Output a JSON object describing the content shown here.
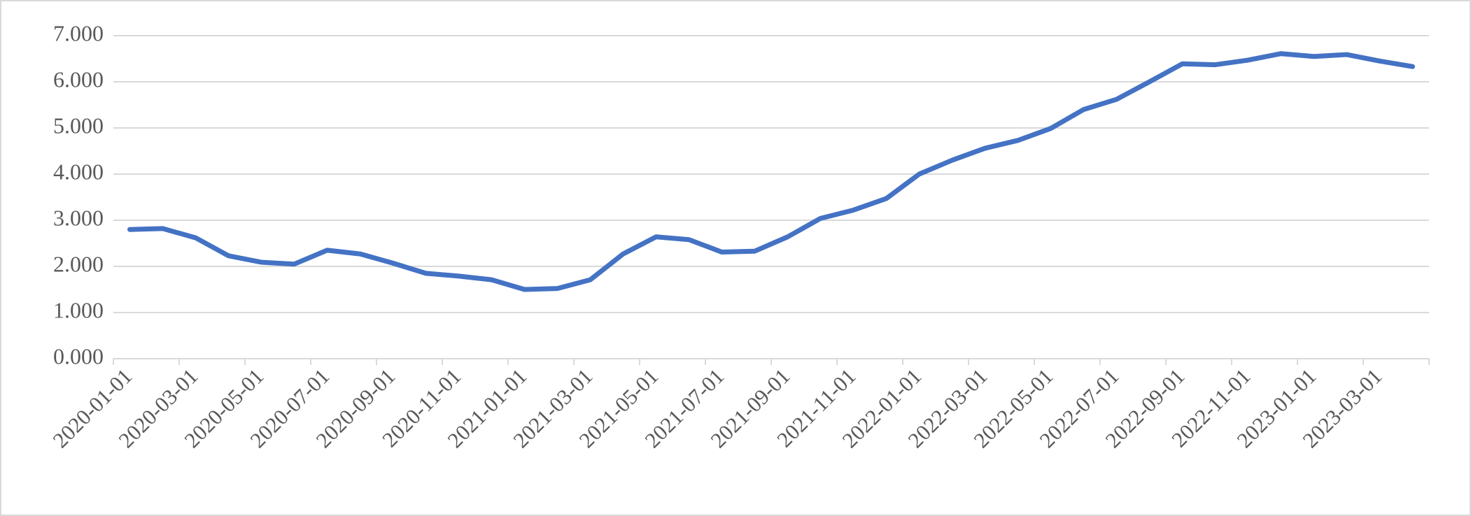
{
  "chart_data": {
    "type": "line",
    "categories": [
      "2020-01-01",
      null,
      "2020-03-01",
      null,
      "2020-05-01",
      null,
      "2020-07-01",
      null,
      "2020-09-01",
      null,
      "2020-11-01",
      null,
      "2021-01-01",
      null,
      "2021-03-01",
      null,
      "2021-05-01",
      null,
      "2021-07-01",
      null,
      "2021-09-01",
      null,
      "2021-11-01",
      null,
      "2022-01-01",
      null,
      "2022-03-01",
      null,
      "2022-05-01",
      null,
      "2022-07-01",
      null,
      "2022-09-01",
      null,
      "2022-11-01",
      null,
      "2023-01-01",
      null,
      "2023-03-01",
      null
    ],
    "values": [
      2.8,
      2.82,
      2.62,
      2.23,
      2.09,
      2.05,
      2.35,
      2.27,
      2.07,
      1.85,
      1.79,
      1.71,
      1.5,
      1.52,
      1.71,
      2.27,
      2.64,
      2.58,
      2.31,
      2.33,
      2.64,
      3.04,
      3.22,
      3.47,
      4.0,
      4.3,
      4.56,
      4.73,
      4.99,
      5.4,
      5.62,
      6.0,
      6.39,
      6.37,
      6.47,
      6.61,
      6.55,
      6.59,
      6.45,
      6.33
    ],
    "color": "#4472c4",
    "ylim": [
      0,
      7
    ],
    "yticks": [
      {
        "value": 0,
        "label": "0.000"
      },
      {
        "value": 1,
        "label": "1.000"
      },
      {
        "value": 2,
        "label": "2.000"
      },
      {
        "value": 3,
        "label": "3.000"
      },
      {
        "value": 4,
        "label": "4.000"
      },
      {
        "value": 5,
        "label": "5.000"
      },
      {
        "value": 6,
        "label": "6.000"
      },
      {
        "value": 7,
        "label": "7.000"
      }
    ],
    "grid": true
  }
}
